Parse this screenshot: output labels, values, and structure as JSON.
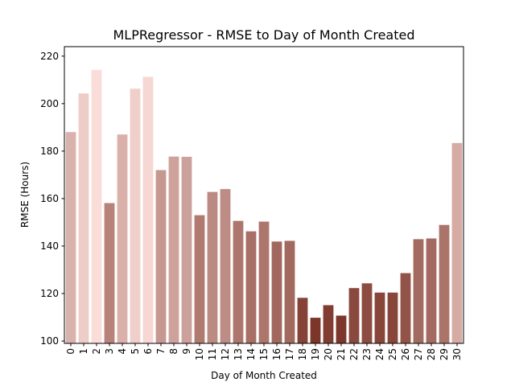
{
  "chart_data": {
    "type": "bar",
    "title": "MLPRegressor - RMSE to Day of Month Created",
    "xlabel": "Day of Month Created",
    "ylabel": "RMSE (Hours)",
    "categories": [
      "0",
      "1",
      "2",
      "3",
      "4",
      "5",
      "6",
      "7",
      "8",
      "9",
      "10",
      "11",
      "12",
      "13",
      "14",
      "15",
      "16",
      "17",
      "18",
      "19",
      "20",
      "21",
      "22",
      "23",
      "24",
      "25",
      "26",
      "27",
      "28",
      "29",
      "30"
    ],
    "values": [
      188.0,
      204.3,
      214.2,
      158.1,
      187.0,
      206.3,
      211.3,
      172.0,
      177.7,
      177.6,
      153.0,
      162.8,
      164.0,
      150.6,
      146.2,
      150.3,
      141.9,
      142.2,
      118.2,
      109.8,
      115.1,
      110.7,
      122.3,
      124.3,
      120.4,
      120.4,
      128.6,
      142.9,
      143.2,
      148.9,
      183.4
    ],
    "ylim": [
      99,
      224
    ],
    "yticks": [
      100,
      120,
      140,
      160,
      180,
      200,
      220
    ],
    "grid": false,
    "legend": "none",
    "colormap": {
      "low_color": "#7b3529",
      "high_color": "#fadcd8"
    }
  }
}
